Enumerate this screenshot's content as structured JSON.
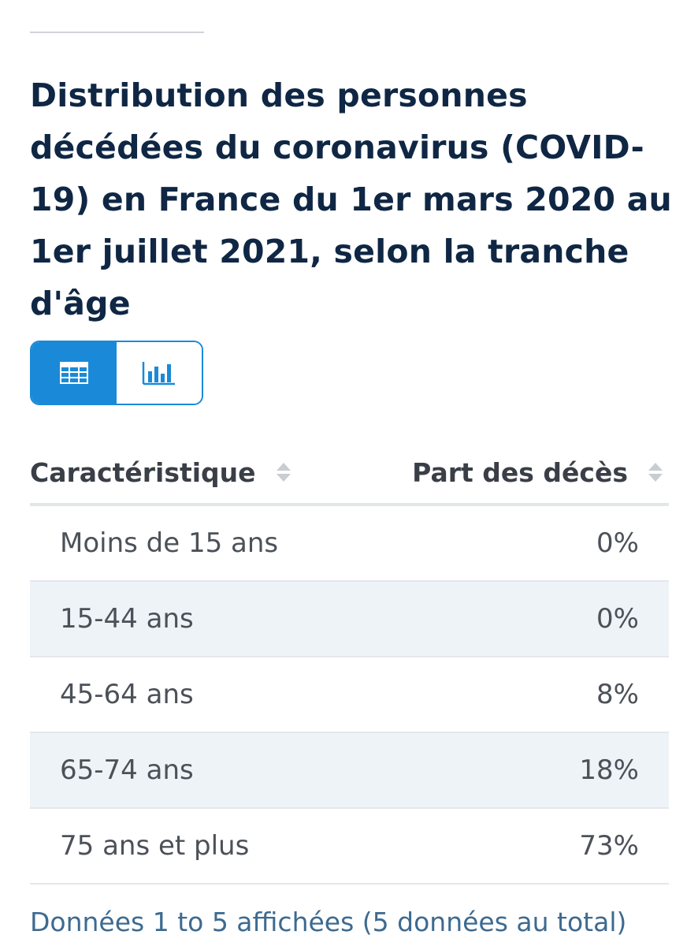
{
  "title": "Distribution des personnes décédées du coronavirus (COVID-19) en France du 1er mars 2020 au 1er juillet 2021, selon la tranche d'âge",
  "view_toggle": {
    "options": [
      {
        "name": "table-view",
        "icon": "table-icon",
        "active": true
      },
      {
        "name": "chart-view",
        "icon": "bar-chart-icon",
        "active": false
      }
    ],
    "accent_color": "#1a8ad8"
  },
  "table": {
    "headers": [
      "Caractéristique",
      "Part des décès"
    ],
    "rows": [
      {
        "label": "Moins de 15 ans",
        "value": "0%"
      },
      {
        "label": "15-44 ans",
        "value": "0%"
      },
      {
        "label": "45-64 ans",
        "value": "8%"
      },
      {
        "label": "65-74 ans",
        "value": "18%"
      },
      {
        "label": "75 ans et plus",
        "value": "73%"
      }
    ]
  },
  "footer": "Données 1 to 5 affichées (5 données au total)",
  "colors": {
    "title": "#0f2744",
    "zebra_row": "#eef3f8",
    "footer_link": "#3d6a90"
  }
}
